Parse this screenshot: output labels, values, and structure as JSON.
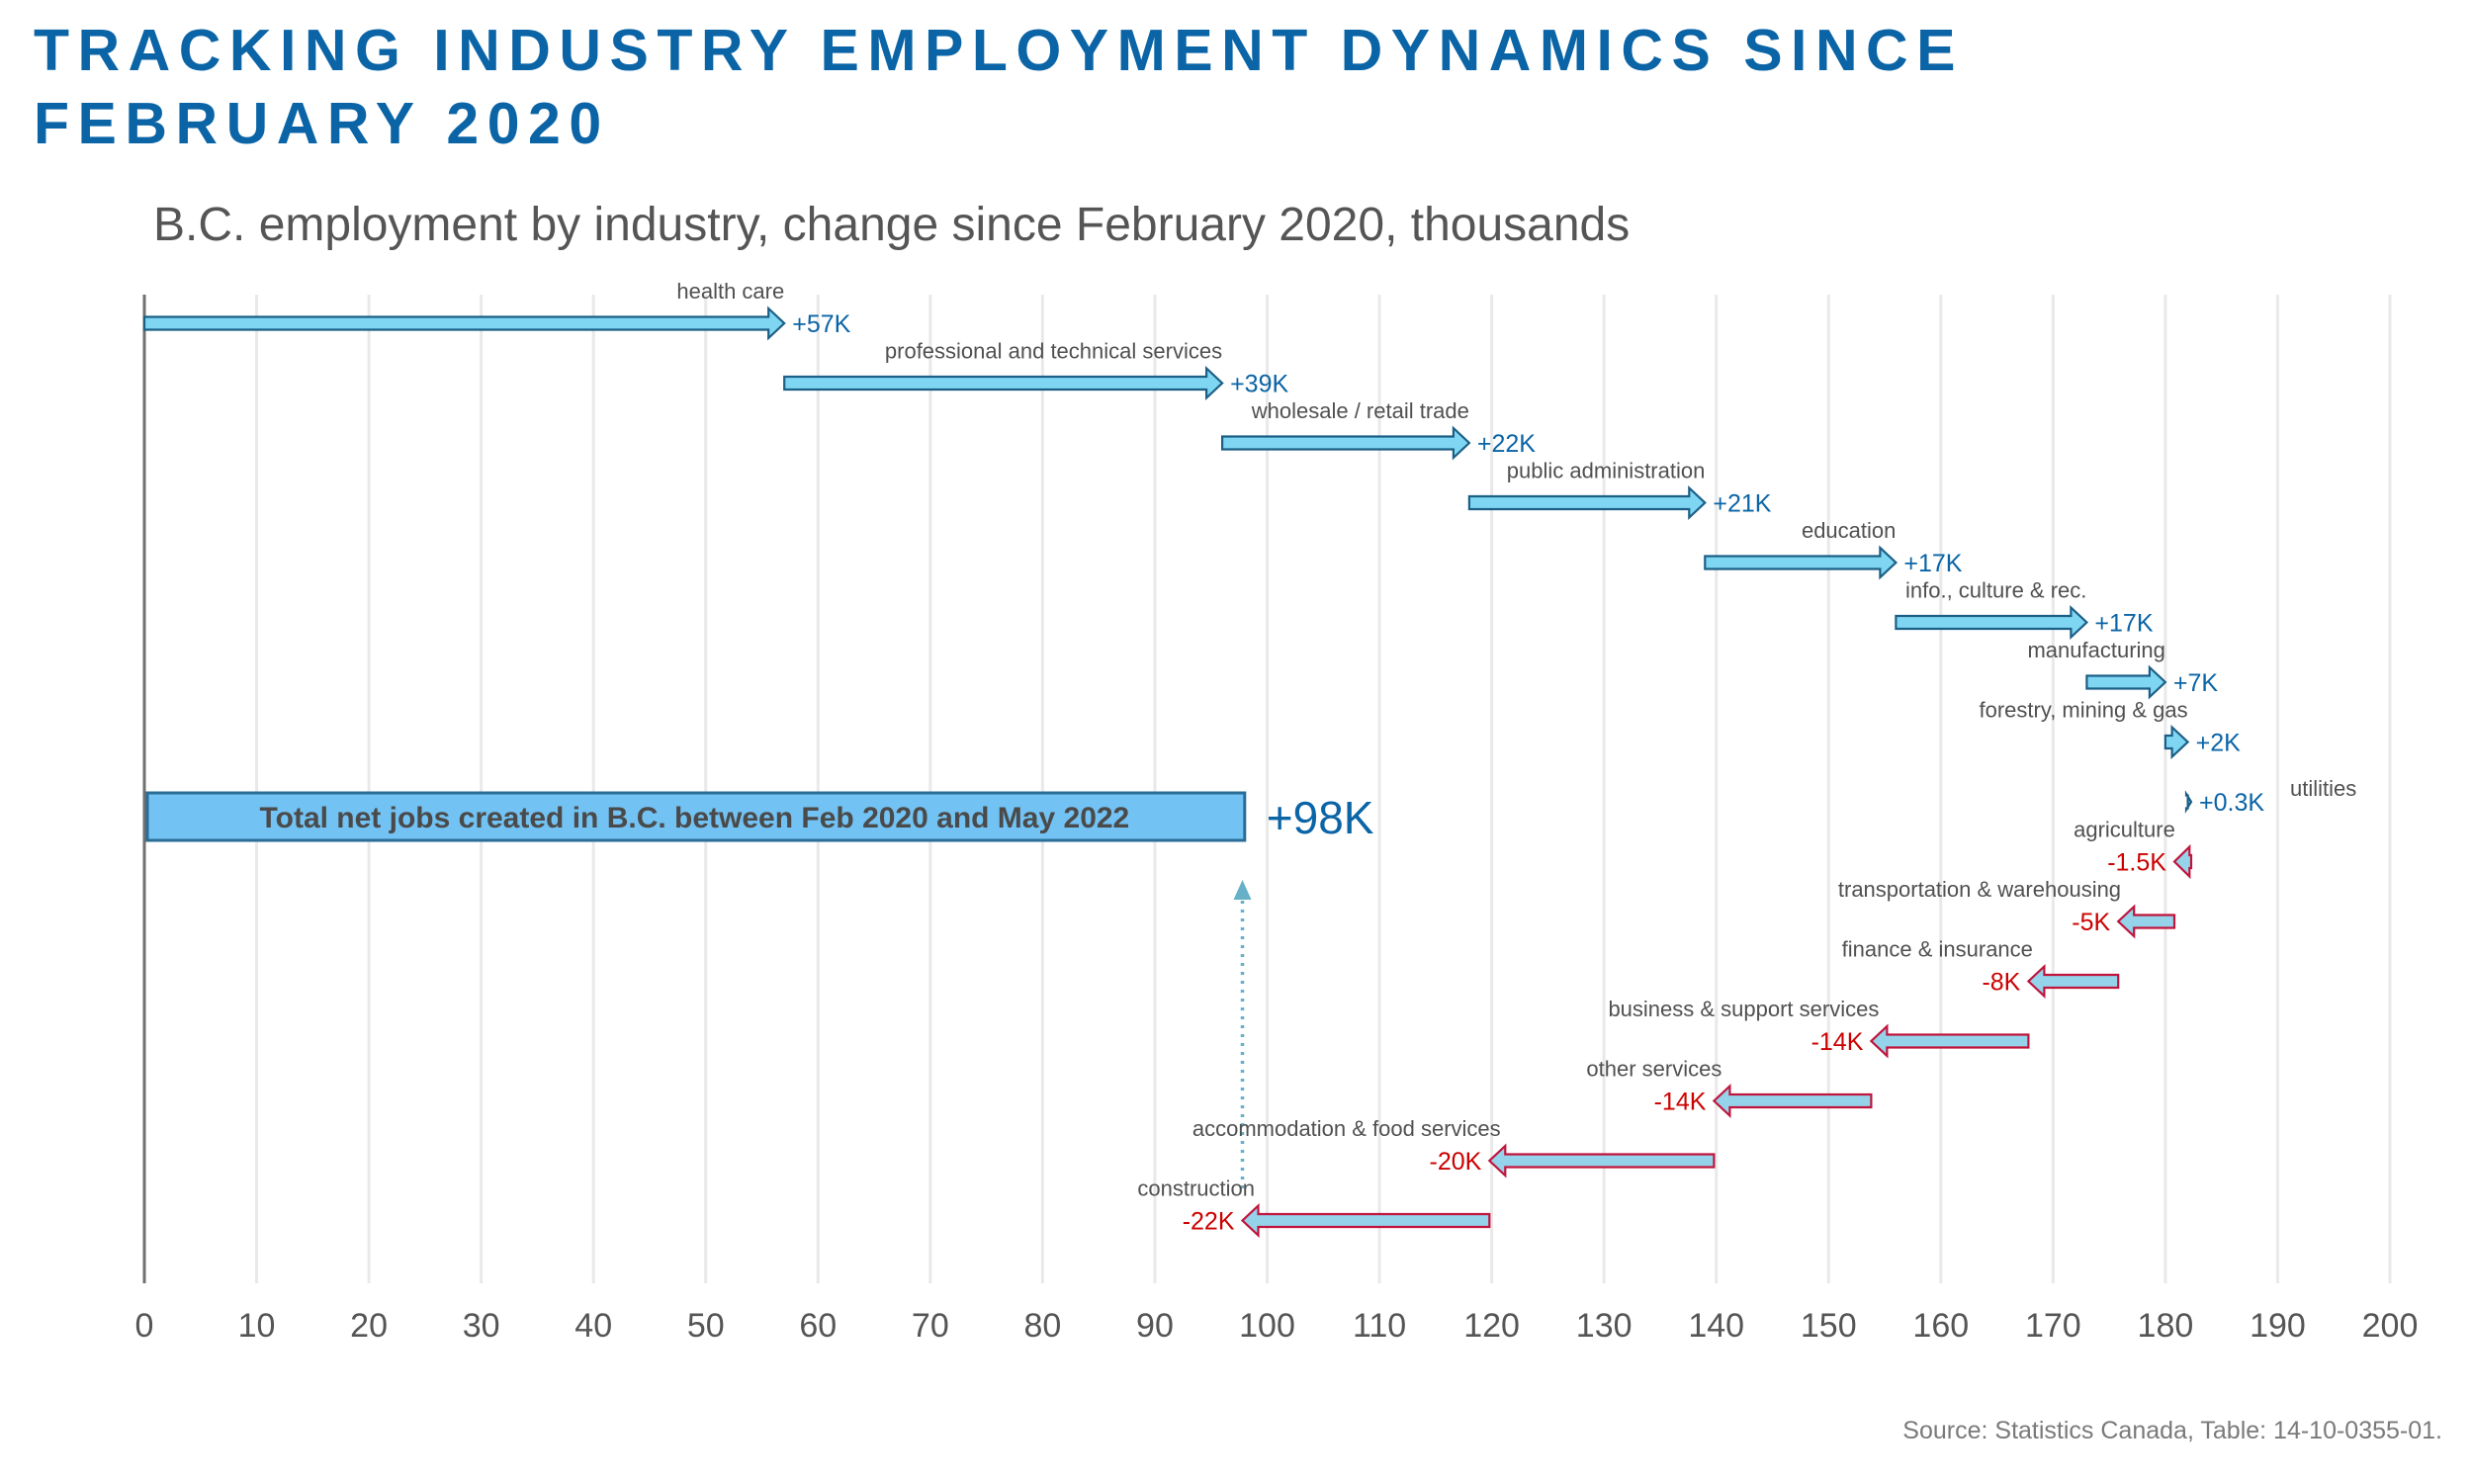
{
  "page": {
    "title_lines": [
      "TRACKING INDUSTRY EMPLOYMENT DYNAMICS SINCE",
      "FEBRUARY 2020"
    ],
    "source": "Source: Statistics Canada,  Table: 14-10-0355-01."
  },
  "chart_data": {
    "type": "waterfall",
    "title": "TRACKING INDUSTRY EMPLOYMENT DYNAMICS SINCE FEBRUARY 2020",
    "subtitle": "B.C. employment by industry, change since February 2020, thousands",
    "xlabel": "",
    "ylabel": "",
    "xlim": [
      0,
      200
    ],
    "x_ticks": [
      0,
      10,
      20,
      30,
      40,
      50,
      60,
      70,
      80,
      90,
      100,
      110,
      120,
      130,
      140,
      150,
      160,
      170,
      180,
      190,
      200
    ],
    "grid": "vertical",
    "items": [
      {
        "category": "health care",
        "change": 57,
        "value_label": "+57K",
        "start": 0,
        "end": 57
      },
      {
        "category": "professional and technical services",
        "change": 39,
        "value_label": "+39K",
        "start": 57,
        "end": 96
      },
      {
        "category": "wholesale / retail trade",
        "change": 22,
        "value_label": "+22K",
        "start": 96,
        "end": 118
      },
      {
        "category": "public administration",
        "change": 21,
        "value_label": "+21K",
        "start": 118,
        "end": 139
      },
      {
        "category": "education",
        "change": 17,
        "value_label": "+17K",
        "start": 139,
        "end": 156
      },
      {
        "category": "info., culture & rec.",
        "change": 17,
        "value_label": "+17K",
        "start": 156,
        "end": 173
      },
      {
        "category": "manufacturing",
        "change": 7,
        "value_label": "+7K",
        "start": 173,
        "end": 180
      },
      {
        "category": "forestry, mining & gas",
        "change": 2,
        "value_label": "+2K",
        "start": 180,
        "end": 182
      },
      {
        "category": "utilities",
        "change": 0.3,
        "value_label": "+0.3K",
        "start": 182,
        "end": 182.3
      },
      {
        "category": "agriculture",
        "change": -1.5,
        "value_label": "-1.5K",
        "start": 182.3,
        "end": 180.8
      },
      {
        "category": "transportation & warehousing",
        "change": -5,
        "value_label": "-5K",
        "start": 180.8,
        "end": 175.8
      },
      {
        "category": "finance & insurance",
        "change": -8,
        "value_label": "-8K",
        "start": 175.8,
        "end": 167.8
      },
      {
        "category": "business & support services",
        "change": -14,
        "value_label": "-14K",
        "start": 167.8,
        "end": 153.8
      },
      {
        "category": "other services",
        "change": -14,
        "value_label": "-14K",
        "start": 153.8,
        "end": 139.8
      },
      {
        "category": "accommodation & food services",
        "change": -20,
        "value_label": "-20K",
        "start": 139.8,
        "end": 119.8
      },
      {
        "category": "construction",
        "change": -22,
        "value_label": "-22K",
        "start": 119.8,
        "end": 97.8
      }
    ],
    "total": {
      "label": "Total net jobs created in B.C. between Feb 2020 and May 2022",
      "value": 98,
      "value_label": "+98K"
    },
    "colors": {
      "title": "#0a64a6",
      "positive_fill": "#7fd6f2",
      "positive_stroke": "#1c5f86",
      "positive_label": "#0a64a6",
      "negative_fill": "#95d3ea",
      "negative_stroke": "#c0143c",
      "negative_label": "#cc0000",
      "total_fill": "#72c2f3",
      "total_stroke": "#2a6e97",
      "total_text": "#4a4a4a",
      "total_value": "#0a64a6",
      "connector": "#66b0c8",
      "category_text": "#505050",
      "tick_text": "#555555",
      "grid": "#e9e9e9",
      "axis": "#707070"
    }
  }
}
